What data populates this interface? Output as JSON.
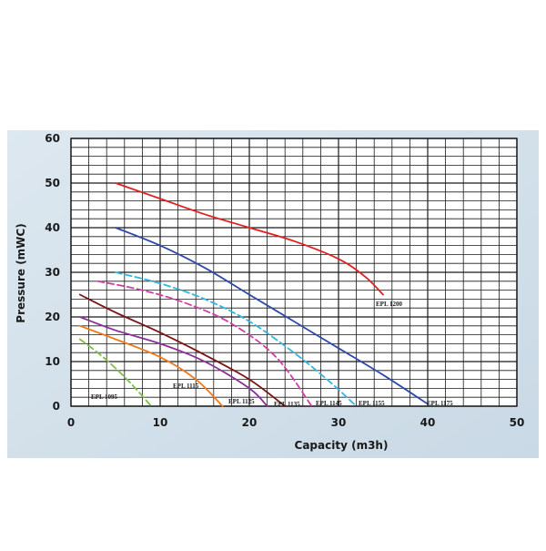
{
  "chart_data": {
    "type": "line",
    "title": "",
    "xlabel": "Capacity (m3h)",
    "ylabel": "Pressure (mWC)",
    "xlim": [
      0,
      50
    ],
    "ylim": [
      0,
      60
    ],
    "x_ticks": [
      "0",
      "10",
      "20",
      "30",
      "40",
      "50"
    ],
    "y_ticks": [
      "0",
      "10",
      "20",
      "30",
      "40",
      "50",
      "60"
    ],
    "grid": true,
    "legend": "inline labels near curve ends",
    "colors": {
      "background_panel": "#d9e6ef",
      "plot_background": "#ffffff",
      "grid": "#1a1a1a"
    },
    "series": [
      {
        "name": "EPL 1095",
        "color": "#7ac043",
        "dashed": true,
        "x": [
          1,
          3,
          5,
          7,
          9
        ],
        "y": [
          15,
          12,
          8.5,
          4.5,
          0
        ]
      },
      {
        "name": "EPL 1115",
        "color": "#f07a1a",
        "dashed": false,
        "x": [
          1,
          5,
          10,
          14,
          17
        ],
        "y": [
          18,
          15,
          11,
          6,
          0
        ]
      },
      {
        "name": "EPL 1125",
        "color": "#8a2f9a",
        "dashed": false,
        "x": [
          1,
          5,
          10,
          15,
          20,
          22
        ],
        "y": [
          20,
          17,
          14,
          10,
          4,
          0
        ]
      },
      {
        "name": "EPL 1135",
        "color": "#7a1416",
        "dashed": false,
        "x": [
          1,
          5,
          10,
          15,
          20,
          24
        ],
        "y": [
          25,
          21,
          16.5,
          11.5,
          6,
          0
        ]
      },
      {
        "name": "EPL 1145",
        "color": "#cf3fa8",
        "dashed": true,
        "x": [
          3,
          8,
          13,
          18,
          23,
          27
        ],
        "y": [
          28,
          26,
          23,
          18.5,
          11,
          0
        ]
      },
      {
        "name": "EPL 1155",
        "color": "#2fb6e2",
        "dashed": true,
        "x": [
          5,
          10,
          15,
          20,
          25,
          29,
          32
        ],
        "y": [
          30,
          27.5,
          24,
          19,
          12,
          5.5,
          0
        ]
      },
      {
        "name": "EPL 1175",
        "color": "#2d4aa8",
        "dashed": false,
        "x": [
          5,
          10,
          15,
          20,
          25,
          30,
          35,
          40
        ],
        "y": [
          40,
          36,
          31,
          25,
          19,
          13,
          7,
          0.5
        ]
      },
      {
        "name": "EPL 1200",
        "color": "#e02020",
        "dashed": false,
        "x": [
          5,
          10,
          15,
          20,
          25,
          30,
          33,
          35
        ],
        "y": [
          50,
          46.5,
          43,
          40,
          37,
          33,
          29,
          25
        ]
      }
    ]
  }
}
